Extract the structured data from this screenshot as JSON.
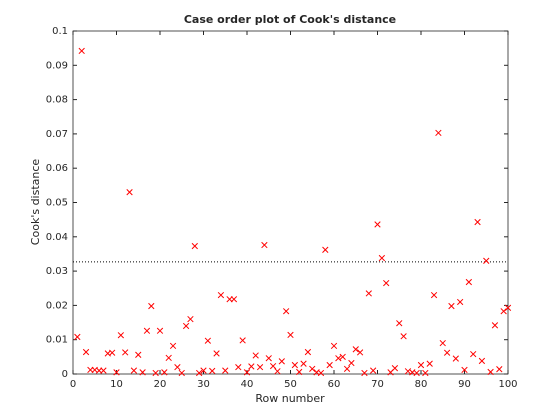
{
  "chart_data": {
    "type": "scatter",
    "title": "Case order plot of Cook's distance",
    "xlabel": "Row number",
    "ylabel": "Cook's distance",
    "color": "#ff0000",
    "x": [
      1,
      2,
      3,
      4,
      5,
      6,
      7,
      8,
      9,
      10,
      11,
      12,
      13,
      14,
      15,
      16,
      17,
      18,
      19,
      20,
      21,
      22,
      23,
      24,
      25,
      26,
      27,
      28,
      29,
      30,
      31,
      32,
      33,
      34,
      35,
      36,
      37,
      38,
      39,
      40,
      41,
      42,
      43,
      44,
      45,
      46,
      47,
      48,
      49,
      50,
      51,
      52,
      53,
      54,
      55,
      56,
      57,
      58,
      59,
      60,
      61,
      62,
      63,
      64,
      65,
      66,
      67,
      68,
      69,
      70,
      71,
      72,
      73,
      74,
      75,
      76,
      77,
      78,
      79,
      80,
      81,
      82,
      83,
      84,
      85,
      86,
      87,
      88,
      89,
      90,
      91,
      92,
      93,
      94,
      95,
      96,
      97,
      98,
      99,
      100
    ],
    "values": [
      0.0108,
      0.0942,
      0.0064,
      0.0012,
      0.0012,
      0.001,
      0.001,
      0.006,
      0.0062,
      0.0005,
      0.0113,
      0.0063,
      0.053,
      0.001,
      0.0056,
      0.0005,
      0.0126,
      0.0198,
      0.0003,
      0.0126,
      0.0005,
      0.0047,
      0.0082,
      0.002,
      0.0003,
      0.014,
      0.016,
      0.0373,
      0.0003,
      0.001,
      0.0097,
      0.0009,
      0.006,
      0.023,
      0.001,
      0.0218,
      0.0218,
      0.002,
      0.0098,
      0.0005,
      0.0022,
      0.0054,
      0.002,
      0.0376,
      0.0046,
      0.0023,
      0.0008,
      0.0037,
      0.0183,
      0.0114,
      0.0026,
      0.0006,
      0.003,
      0.0064,
      0.0015,
      0.0005,
      0.0003,
      0.0362,
      0.0026,
      0.0082,
      0.0046,
      0.005,
      0.0015,
      0.0032,
      0.0072,
      0.0063,
      0.0003,
      0.0235,
      0.001,
      0.0436,
      0.0338,
      0.0265,
      0.0005,
      0.0017,
      0.0148,
      0.011,
      0.0008,
      0.0005,
      0.0003,
      0.0026,
      0.0003,
      0.003,
      0.023,
      0.0703,
      0.009,
      0.0062,
      0.0198,
      0.0045,
      0.021,
      0.0012,
      0.0268,
      0.0058,
      0.0443,
      0.0038,
      0.033,
      0.0006,
      0.0142,
      0.0014,
      0.0183,
      0.0193
    ],
    "threshold": 0.0327,
    "xlim": [
      0,
      100
    ],
    "xticks": [
      0,
      10,
      20,
      30,
      40,
      50,
      60,
      70,
      80,
      90,
      100
    ],
    "ylim": [
      0,
      0.1
    ],
    "yticks": [
      0,
      0.01,
      0.02,
      0.03,
      0.04,
      0.05,
      0.06,
      0.07,
      0.08,
      0.09,
      0.1
    ]
  }
}
